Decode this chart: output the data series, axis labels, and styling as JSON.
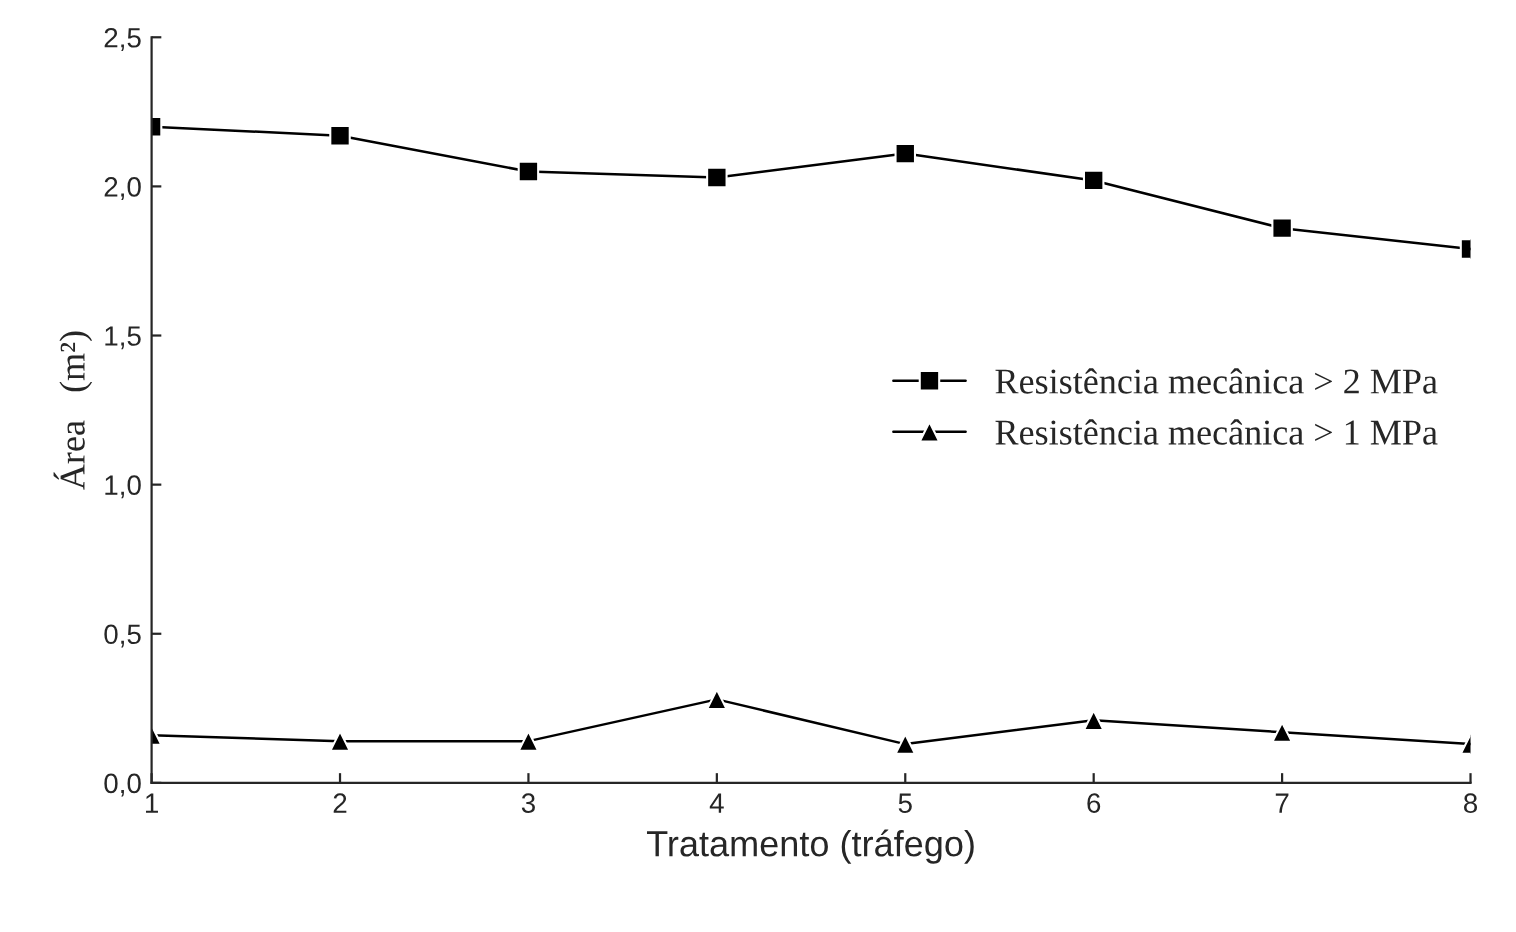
{
  "chart_data": {
    "type": "line",
    "xlabel": "Tratamento (tráfego)",
    "ylabel": "Área   (m²)",
    "x": [
      1,
      2,
      3,
      4,
      5,
      6,
      7,
      8
    ],
    "series": [
      {
        "name": "Resistência mecânica > 2 MPa",
        "color": "#000000",
        "marker": "square",
        "values": [
          2.2,
          2.17,
          2.05,
          2.03,
          2.11,
          2.02,
          1.86,
          1.79
        ]
      },
      {
        "name": "Resistência mecânica > 1 MPa",
        "color": "#000000",
        "marker": "triangle",
        "values": [
          0.16,
          0.14,
          0.14,
          0.28,
          0.13,
          0.21,
          0.17,
          0.13
        ]
      }
    ],
    "xlim": [
      1,
      8
    ],
    "xticks": [
      1,
      2,
      3,
      4,
      5,
      6,
      7,
      8
    ],
    "ylim": [
      0,
      2.5
    ],
    "yticks": [
      {
        "value": 0,
        "label": "0,0"
      },
      {
        "value": 0.5,
        "label": "0,5"
      },
      {
        "value": 1.0,
        "label": "1,0"
      },
      {
        "value": 1.5,
        "label": "1,5"
      },
      {
        "value": 2.0,
        "label": "2,0"
      },
      {
        "value": 2.5,
        "label": "2,5"
      }
    ],
    "grid": false,
    "legend": "center right",
    "line_style": "solid"
  }
}
